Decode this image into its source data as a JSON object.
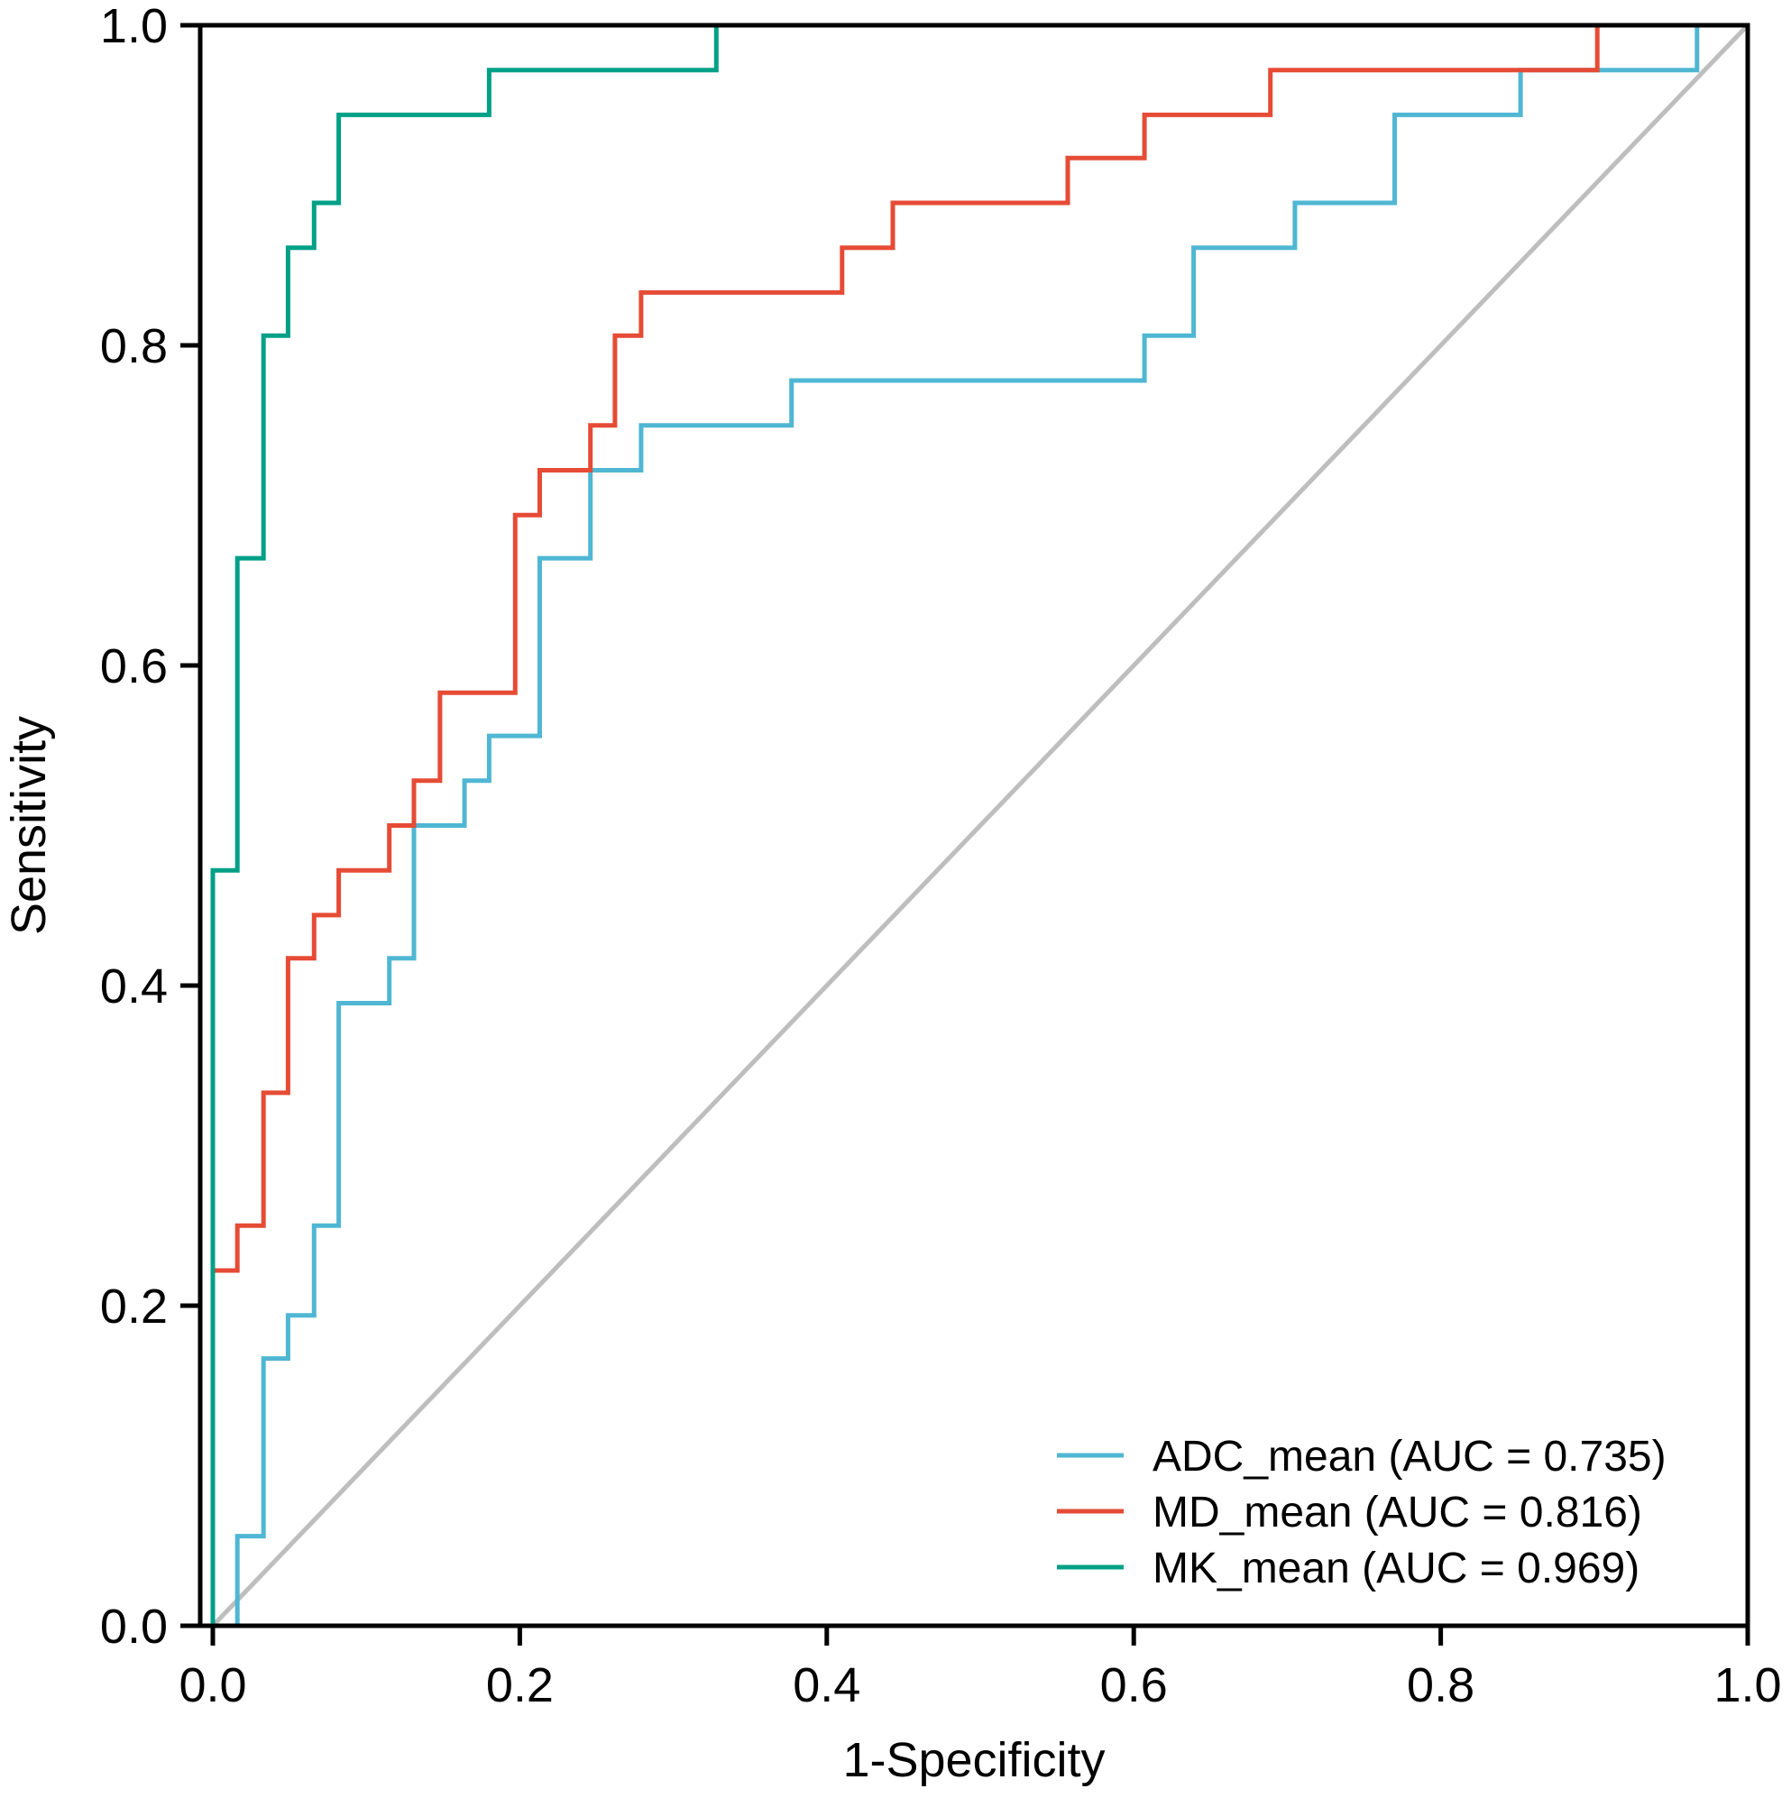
{
  "chart_data": {
    "type": "line",
    "title": "",
    "xlabel": "1-Specificity",
    "ylabel": "Sensitivity",
    "xlim": [
      0.0,
      1.0
    ],
    "ylim": [
      0.0,
      1.0
    ],
    "grid": false,
    "legend_position": "bottom-right",
    "x_ticks": [
      0.0,
      0.2,
      0.4,
      0.6,
      0.8,
      1.0
    ],
    "y_ticks": [
      0.0,
      0.2,
      0.4,
      0.6,
      0.8,
      1.0
    ],
    "x_tick_labels": [
      "0.0",
      "0.2",
      "0.4",
      "0.6",
      "0.8",
      "1.0"
    ],
    "y_tick_labels": [
      "0.0",
      "0.2",
      "0.4",
      "0.6",
      "0.8",
      "1.0"
    ],
    "reference_line": {
      "color": "#bebebe",
      "points": [
        [
          0,
          0
        ],
        [
          1,
          1
        ]
      ]
    },
    "series": [
      {
        "name": "ADC_mean",
        "legend_label": "ADC_mean (AUC = 0.735)",
        "auc": 0.735,
        "color": "#4fb7d3",
        "points": [
          [
            0.016,
            0.0
          ],
          [
            0.016,
            0.056
          ],
          [
            0.033,
            0.056
          ],
          [
            0.033,
            0.167
          ],
          [
            0.049,
            0.167
          ],
          [
            0.049,
            0.194
          ],
          [
            0.066,
            0.194
          ],
          [
            0.066,
            0.25
          ],
          [
            0.082,
            0.25
          ],
          [
            0.082,
            0.389
          ],
          [
            0.115,
            0.389
          ],
          [
            0.115,
            0.417
          ],
          [
            0.131,
            0.417
          ],
          [
            0.131,
            0.5
          ],
          [
            0.164,
            0.5
          ],
          [
            0.164,
            0.528
          ],
          [
            0.18,
            0.528
          ],
          [
            0.18,
            0.556
          ],
          [
            0.213,
            0.556
          ],
          [
            0.213,
            0.667
          ],
          [
            0.246,
            0.667
          ],
          [
            0.246,
            0.722
          ],
          [
            0.279,
            0.722
          ],
          [
            0.279,
            0.75
          ],
          [
            0.377,
            0.75
          ],
          [
            0.377,
            0.778
          ],
          [
            0.607,
            0.778
          ],
          [
            0.607,
            0.806
          ],
          [
            0.639,
            0.806
          ],
          [
            0.639,
            0.861
          ],
          [
            0.705,
            0.861
          ],
          [
            0.705,
            0.889
          ],
          [
            0.77,
            0.889
          ],
          [
            0.77,
            0.944
          ],
          [
            0.852,
            0.944
          ],
          [
            0.852,
            0.972
          ],
          [
            0.967,
            0.972
          ],
          [
            0.967,
            1.0
          ],
          [
            1.0,
            1.0
          ]
        ]
      },
      {
        "name": "MD_mean",
        "legend_label": "MD_mean (AUC = 0.816)",
        "auc": 0.816,
        "color": "#e64b35",
        "points": [
          [
            0.0,
            0.222
          ],
          [
            0.016,
            0.222
          ],
          [
            0.016,
            0.25
          ],
          [
            0.033,
            0.25
          ],
          [
            0.033,
            0.333
          ],
          [
            0.049,
            0.333
          ],
          [
            0.049,
            0.417
          ],
          [
            0.066,
            0.417
          ],
          [
            0.066,
            0.444
          ],
          [
            0.082,
            0.444
          ],
          [
            0.082,
            0.472
          ],
          [
            0.115,
            0.472
          ],
          [
            0.115,
            0.5
          ],
          [
            0.131,
            0.5
          ],
          [
            0.131,
            0.528
          ],
          [
            0.148,
            0.528
          ],
          [
            0.148,
            0.583
          ],
          [
            0.197,
            0.583
          ],
          [
            0.197,
            0.694
          ],
          [
            0.213,
            0.694
          ],
          [
            0.213,
            0.722
          ],
          [
            0.246,
            0.722
          ],
          [
            0.246,
            0.75
          ],
          [
            0.262,
            0.75
          ],
          [
            0.262,
            0.806
          ],
          [
            0.279,
            0.806
          ],
          [
            0.279,
            0.833
          ],
          [
            0.41,
            0.833
          ],
          [
            0.41,
            0.861
          ],
          [
            0.443,
            0.861
          ],
          [
            0.443,
            0.889
          ],
          [
            0.557,
            0.889
          ],
          [
            0.557,
            0.917
          ],
          [
            0.607,
            0.917
          ],
          [
            0.607,
            0.944
          ],
          [
            0.689,
            0.944
          ],
          [
            0.689,
            0.972
          ],
          [
            0.902,
            0.972
          ],
          [
            0.902,
            1.0
          ],
          [
            1.0,
            1.0
          ]
        ]
      },
      {
        "name": "MK_mean",
        "legend_label": "MK_mean (AUC = 0.969)",
        "auc": 0.969,
        "color": "#00a087",
        "points": [
          [
            0.0,
            0.0
          ],
          [
            0.0,
            0.472
          ],
          [
            0.016,
            0.472
          ],
          [
            0.016,
            0.667
          ],
          [
            0.033,
            0.667
          ],
          [
            0.033,
            0.806
          ],
          [
            0.049,
            0.806
          ],
          [
            0.049,
            0.861
          ],
          [
            0.066,
            0.861
          ],
          [
            0.066,
            0.889
          ],
          [
            0.082,
            0.889
          ],
          [
            0.082,
            0.944
          ],
          [
            0.18,
            0.944
          ],
          [
            0.18,
            0.972
          ],
          [
            0.328,
            0.972
          ],
          [
            0.328,
            1.0
          ],
          [
            1.0,
            1.0
          ]
        ]
      }
    ]
  }
}
